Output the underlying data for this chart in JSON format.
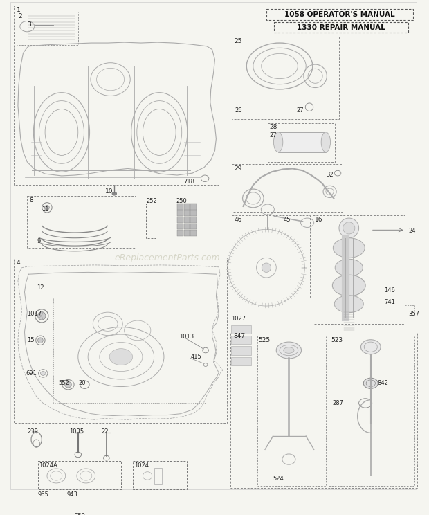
{
  "bg_color": "#f5f5f0",
  "page_bg": "#f0eeea",
  "line_color": "#555555",
  "dash_color": "#888888",
  "text_color": "#222222",
  "watermark_text": "eReplacementParts.com",
  "watermark_color": "#ccccbb",
  "manual_box1": "1058 OPERATOR'S MANUAL",
  "manual_box2": "1330 REPAIR MANUAL",
  "figsize": [
    6.2,
    7.44
  ],
  "dpi": 100
}
